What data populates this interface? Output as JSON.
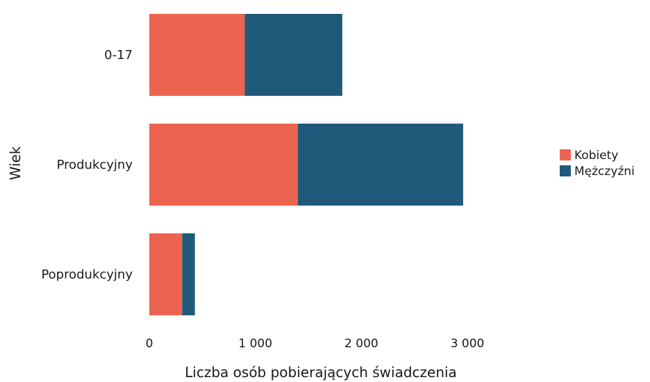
{
  "chart_data": {
    "type": "bar",
    "orientation": "horizontal",
    "stacked": true,
    "categories": [
      "0-17",
      "Produkcyjny",
      "Poprodukcyjny"
    ],
    "series": [
      {
        "name": "Kobiety",
        "values": [
          900,
          1400,
          310
        ],
        "color": "#ec6450"
      },
      {
        "name": "Mężczyźni",
        "values": [
          920,
          1560,
          120
        ],
        "color": "#1f5a7a"
      }
    ],
    "xlabel": "Liczba osób pobierających świadczenia",
    "ylabel": "Wiek",
    "xlim": [
      0,
      3200
    ],
    "xticks": [
      0,
      1000,
      2000,
      3000
    ],
    "xtick_labels": [
      "0",
      "1 000",
      "2 000",
      "3 000"
    ],
    "grid": false,
    "legend_position": "right"
  }
}
